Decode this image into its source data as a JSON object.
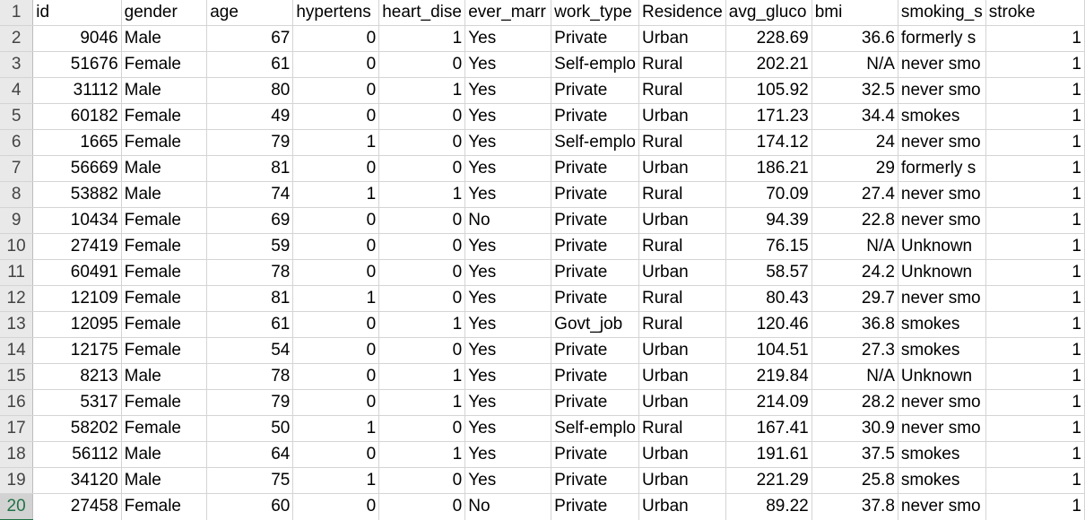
{
  "spreadsheet": {
    "columns": [
      {
        "key": "id",
        "header": "id",
        "align": "num"
      },
      {
        "key": "gender",
        "header": "gender",
        "align": "txt"
      },
      {
        "key": "age",
        "header": "age",
        "align": "num"
      },
      {
        "key": "hypertension",
        "header": "hypertens",
        "align": "num"
      },
      {
        "key": "heart_disease",
        "header": "heart_dise",
        "align": "num"
      },
      {
        "key": "ever_married",
        "header": "ever_marr",
        "align": "txt"
      },
      {
        "key": "work_type",
        "header": "work_type",
        "align": "txt"
      },
      {
        "key": "residence",
        "header": "Residence",
        "align": "txt"
      },
      {
        "key": "avg_glucose",
        "header": "avg_gluco",
        "align": "num"
      },
      {
        "key": "bmi",
        "header": "bmi",
        "align": "num"
      },
      {
        "key": "smoking",
        "header": "smoking_s",
        "align": "txt"
      },
      {
        "key": "stroke",
        "header": "stroke",
        "align": "num"
      }
    ],
    "header_row_number": "1",
    "selected_row_number": "20",
    "rows": [
      {
        "n": "2",
        "cells": [
          "9046",
          "Male",
          "67",
          "0",
          "1",
          "Yes",
          "Private",
          "Urban",
          "228.69",
          "36.6",
          "formerly s",
          "1"
        ]
      },
      {
        "n": "3",
        "cells": [
          "51676",
          "Female",
          "61",
          "0",
          "0",
          "Yes",
          "Self-emplo",
          "Rural",
          "202.21",
          "N/A",
          "never smo",
          "1"
        ]
      },
      {
        "n": "4",
        "cells": [
          "31112",
          "Male",
          "80",
          "0",
          "1",
          "Yes",
          "Private",
          "Rural",
          "105.92",
          "32.5",
          "never smo",
          "1"
        ]
      },
      {
        "n": "5",
        "cells": [
          "60182",
          "Female",
          "49",
          "0",
          "0",
          "Yes",
          "Private",
          "Urban",
          "171.23",
          "34.4",
          "smokes",
          "1"
        ]
      },
      {
        "n": "6",
        "cells": [
          "1665",
          "Female",
          "79",
          "1",
          "0",
          "Yes",
          "Self-emplo",
          "Rural",
          "174.12",
          "24",
          "never smo",
          "1"
        ]
      },
      {
        "n": "7",
        "cells": [
          "56669",
          "Male",
          "81",
          "0",
          "0",
          "Yes",
          "Private",
          "Urban",
          "186.21",
          "29",
          "formerly s",
          "1"
        ]
      },
      {
        "n": "8",
        "cells": [
          "53882",
          "Male",
          "74",
          "1",
          "1",
          "Yes",
          "Private",
          "Rural",
          "70.09",
          "27.4",
          "never smo",
          "1"
        ]
      },
      {
        "n": "9",
        "cells": [
          "10434",
          "Female",
          "69",
          "0",
          "0",
          "No",
          "Private",
          "Urban",
          "94.39",
          "22.8",
          "never smo",
          "1"
        ]
      },
      {
        "n": "10",
        "cells": [
          "27419",
          "Female",
          "59",
          "0",
          "0",
          "Yes",
          "Private",
          "Rural",
          "76.15",
          "N/A",
          "Unknown",
          "1"
        ]
      },
      {
        "n": "11",
        "cells": [
          "60491",
          "Female",
          "78",
          "0",
          "0",
          "Yes",
          "Private",
          "Urban",
          "58.57",
          "24.2",
          "Unknown",
          "1"
        ]
      },
      {
        "n": "12",
        "cells": [
          "12109",
          "Female",
          "81",
          "1",
          "0",
          "Yes",
          "Private",
          "Rural",
          "80.43",
          "29.7",
          "never smo",
          "1"
        ]
      },
      {
        "n": "13",
        "cells": [
          "12095",
          "Female",
          "61",
          "0",
          "1",
          "Yes",
          "Govt_job",
          "Rural",
          "120.46",
          "36.8",
          "smokes",
          "1"
        ]
      },
      {
        "n": "14",
        "cells": [
          "12175",
          "Female",
          "54",
          "0",
          "0",
          "Yes",
          "Private",
          "Urban",
          "104.51",
          "27.3",
          "smokes",
          "1"
        ]
      },
      {
        "n": "15",
        "cells": [
          "8213",
          "Male",
          "78",
          "0",
          "1",
          "Yes",
          "Private",
          "Urban",
          "219.84",
          "N/A",
          "Unknown",
          "1"
        ]
      },
      {
        "n": "16",
        "cells": [
          "5317",
          "Female",
          "79",
          "0",
          "1",
          "Yes",
          "Private",
          "Urban",
          "214.09",
          "28.2",
          "never smo",
          "1"
        ]
      },
      {
        "n": "17",
        "cells": [
          "58202",
          "Female",
          "50",
          "1",
          "0",
          "Yes",
          "Self-emplo",
          "Rural",
          "167.41",
          "30.9",
          "never smo",
          "1"
        ]
      },
      {
        "n": "18",
        "cells": [
          "56112",
          "Male",
          "64",
          "0",
          "1",
          "Yes",
          "Private",
          "Urban",
          "191.61",
          "37.5",
          "smokes",
          "1"
        ]
      },
      {
        "n": "19",
        "cells": [
          "34120",
          "Male",
          "75",
          "1",
          "0",
          "Yes",
          "Private",
          "Urban",
          "221.29",
          "25.8",
          "smokes",
          "1"
        ]
      },
      {
        "n": "20",
        "cells": [
          "27458",
          "Female",
          "60",
          "0",
          "0",
          "No",
          "Private",
          "Urban",
          "89.22",
          "37.8",
          "never smo",
          "1"
        ]
      }
    ]
  },
  "colors": {
    "row_header_bg": "#e9e9e9",
    "selected_row_accent": "#217346",
    "gridline": "#d4d4d4"
  }
}
